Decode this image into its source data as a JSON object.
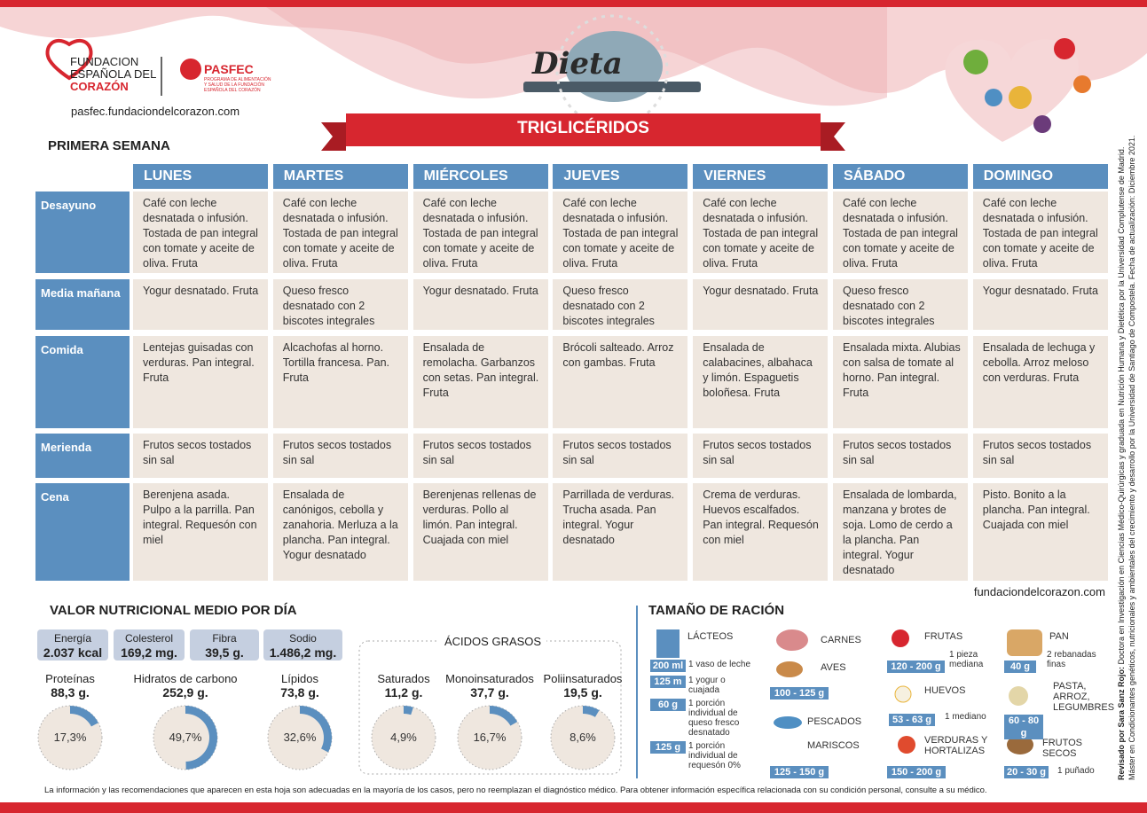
{
  "header": {
    "logo_lines": [
      "FUNDACION",
      "ESPAÑOLA DEL",
      "CORAZÓN"
    ],
    "pasfec": "PASFEC",
    "pasfec_sub": "PROGRAMA DE ALIMENTACIÓN Y SALUD DE LA FUNDACIÓN ESPAÑOLA DEL CORAZÓN",
    "url": "pasfec.fundaciondelcorazon.com",
    "title": "Dieta",
    "banner": "TRIGLICÉRIDOS"
  },
  "week": "PRIMERA SEMANA",
  "table": {
    "days": [
      "LUNES",
      "MARTES",
      "MIÉRCOLES",
      "JUEVES",
      "VIERNES",
      "SÁBADO",
      "DOMINGO"
    ],
    "meals": [
      "Desayuno",
      "Media mañana",
      "Comida",
      "Merienda",
      "Cena"
    ],
    "rows": [
      [
        "Café con leche desnatada o infusión. Tostada de pan integral con tomate y aceite de oliva. Fruta",
        "Café con leche desnatada o infusión. Tostada de pan integral con tomate y aceite de oliva. Fruta",
        "Café con leche desnatada o infusión. Tostada de pan integral con tomate y aceite de oliva. Fruta",
        "Café con leche desnatada o infusión. Tostada de pan integral con tomate y aceite de oliva. Fruta",
        "Café con leche desnatada o infusión. Tostada de pan integral con tomate y aceite de oliva. Fruta",
        "Café con leche desnatada o infusión. Tostada de pan integral con tomate y aceite de oliva. Fruta",
        "Café con leche desnatada o infusión. Tostada de pan integral con tomate y aceite de oliva. Fruta"
      ],
      [
        "Yogur desnatado. Fruta",
        "Queso fresco desnatado con 2 biscotes integrales",
        "Yogur desnatado. Fruta",
        "Queso fresco desnatado con 2 biscotes integrales",
        "Yogur desnatado. Fruta",
        "Queso fresco desnatado con 2 biscotes integrales",
        "Yogur desnatado. Fruta"
      ],
      [
        "Lentejas guisadas con verduras. Pan integral. Fruta",
        "Alcachofas al horno. Tortilla francesa. Pan. Fruta",
        "Ensalada de remolacha. Garbanzos con setas. Pan integral. Fruta",
        "Brócoli salteado. Arroz con gambas. Fruta",
        "Ensalada de calabacines, albahaca y limón. Espaguetis boloñesa. Fruta",
        "Ensalada mixta. Alubias con salsa de tomate al horno. Pan integral. Fruta",
        "Ensalada de lechuga y cebolla. Arroz meloso con verduras. Fruta"
      ],
      [
        "Frutos secos tostados sin sal",
        "Frutos secos tostados sin sal",
        "Frutos secos tostados sin sal",
        "Frutos secos tostados sin sal",
        "Frutos secos tostados sin sal",
        "Frutos secos tostados sin sal",
        "Frutos secos tostados sin sal"
      ],
      [
        "Berenjena asada. Pulpo a la parrilla. Pan integral. Requesón con miel",
        "Ensalada de canónigos, cebolla y zanahoria. Merluza a la plancha. Pan integral. Yogur desnatado",
        "Berenjenas rellenas de verduras. Pollo al limón. Pan integral. Cuajada con miel",
        "Parrillada de verduras. Trucha asada. Pan integral. Yogur desnatado",
        "Crema de verduras. Huevos escalfados. Pan integral. Requesón con miel",
        "Ensalada de lombarda, manzana y brotes de soja. Lomo de cerdo a la plancha. Pan integral. Yogur desnatado",
        "Pisto. Bonito a la plancha. Pan integral. Cuajada con miel"
      ]
    ]
  },
  "site": "fundaciondelcorazon.com",
  "nutrition": {
    "title": "VALOR NUTRICIONAL MEDIO POR DÍA",
    "summary": [
      {
        "label": "Energía",
        "value": "2.037 kcal"
      },
      {
        "label": "Colesterol",
        "value": "169,2 mg."
      },
      {
        "label": "Fibra",
        "value": "39,5 g."
      },
      {
        "label": "Sodio",
        "value": "1.486,2 mg."
      }
    ],
    "macros": [
      {
        "name": "Proteínas",
        "amount": "88,3 g.",
        "percent": {
          "value": 17.3,
          "label": "17,3%"
        }
      },
      {
        "name": "Hidratos de carbono",
        "amount": "252,9 g.",
        "percent": {
          "value": 49.7,
          "label": "49,7%"
        }
      },
      {
        "name": "Lípidos",
        "amount": "73,8 g.",
        "percent": {
          "value": 32.6,
          "label": "32,6%"
        }
      }
    ]
  },
  "fats": {
    "title": "ÁCIDOS GRASOS",
    "items": [
      {
        "name": "Saturados",
        "amount": "11,2 g.",
        "percent": {
          "value": 4.9,
          "label": "4,9%"
        }
      },
      {
        "name": "Monoinsaturados",
        "amount": "37,7 g.",
        "percent": {
          "value": 16.7,
          "label": "16,7%"
        }
      },
      {
        "name": "Poliinsaturados",
        "amount": "19,5 g.",
        "percent": {
          "value": 8.6,
          "label": "8,6%"
        }
      }
    ]
  },
  "portions": {
    "title": "TAMAÑO DE RACIÓN",
    "groups": [
      {
        "names": [
          "LÁCTEOS"
        ],
        "rows": [
          {
            "badge": "200 ml",
            "note": "1 vaso de leche"
          },
          {
            "badge": "125 m",
            "note": "1 yogur o cuajada"
          },
          {
            "badge": "60 g",
            "note": "1 porción individual de queso fresco desnatado"
          },
          {
            "badge": "125 g",
            "note": "1 porción individual de requesón 0%"
          }
        ]
      },
      {
        "names": [
          "CARNES",
          "AVES"
        ],
        "rows": [
          {
            "badge": "100 - 125 g"
          }
        ]
      },
      {
        "names": [
          "PESCADOS",
          "MARISCOS"
        ],
        "rows": [
          {
            "badge": "125 - 150 g"
          }
        ]
      },
      {
        "names": [
          "FRUTAS"
        ],
        "rows": [
          {
            "badge": "120 - 200 g",
            "note": "1 pieza mediana"
          }
        ]
      },
      {
        "names": [
          "HUEVOS"
        ],
        "rows": [
          {
            "badge": "53 - 63 g",
            "note": "1 mediano"
          }
        ]
      },
      {
        "names": [
          "VERDURAS Y HORTALIZAS"
        ],
        "rows": [
          {
            "badge": "150 - 200 g"
          }
        ]
      },
      {
        "names": [
          "PAN"
        ],
        "rows": [
          {
            "badge": "40 g",
            "note": "2 rebanadas finas"
          }
        ]
      },
      {
        "names": [
          "PASTA, ARROZ, LEGUMBRES"
        ],
        "rows": [
          {
            "badge": "60 - 80 g"
          }
        ]
      },
      {
        "names": [
          "FRUTOS SECOS"
        ],
        "rows": [
          {
            "badge": "20 - 30 g",
            "note": "1 puñado"
          }
        ]
      }
    ]
  },
  "footer": "La información y las recomendaciones que aparecen en esta hoja son adecuadas en la mayoría de los casos, pero no reemplazan el diagnóstico médico. Para obtener información específica relacionada con su condición personal, consulte a su médico.",
  "reviewer": {
    "name": "Revisado por Sara Sanz Rojo:",
    "bio": "Doctora en Investigación en Ciencias Médico-Quirúrgicas y graduada en Nutrición Humana y Dietética por la Universidad Complutense de Madrid. Máster en Condicionantes genéticos, nutricionales y ambientales del crecimiento y desarrollo por la Universidad de Santiago de Compostela. Fecha de actualización: Diciembre 2021."
  }
}
